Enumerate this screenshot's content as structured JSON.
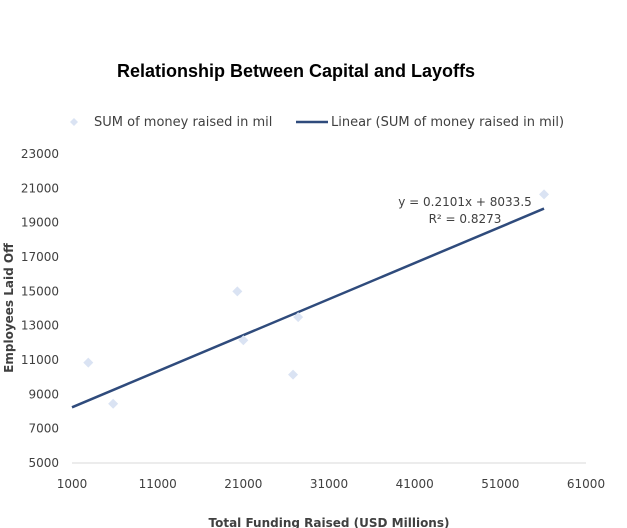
{
  "chart_data": {
    "type": "scatter",
    "title": "Relationship Between Capital and Layoffs",
    "xlabel": "Total Funding Raised (USD Millions)",
    "ylabel": "Employees Laid Off",
    "xlim": [
      1000,
      61000
    ],
    "ylim": [
      5000,
      23000
    ],
    "x_ticks": [
      1000,
      11000,
      21000,
      31000,
      41000,
      51000,
      61000
    ],
    "y_ticks": [
      5000,
      7000,
      9000,
      11000,
      13000,
      15000,
      17000,
      19000,
      21000,
      23000
    ],
    "grid": false,
    "legend_position": "top",
    "series": [
      {
        "name": "SUM of money raised in mil",
        "marker": "diamond",
        "color": "#dae3f3",
        "points": [
          {
            "x": 2900,
            "y": 10850
          },
          {
            "x": 5800,
            "y": 8450
          },
          {
            "x": 20300,
            "y": 15000
          },
          {
            "x": 21000,
            "y": 12150
          },
          {
            "x": 26800,
            "y": 10150
          },
          {
            "x": 27400,
            "y": 13500
          },
          {
            "x": 56100,
            "y": 20650
          }
        ]
      }
    ],
    "trendline": {
      "name": "Linear (SUM of money raised in mil)",
      "type": "linear",
      "slope": 0.2101,
      "intercept": 8033.5,
      "x_range": [
        1000,
        56100
      ],
      "color": "#2f4b7c",
      "equation": "y = 0.2101x + 8033.5",
      "r_squared": "R² = 0.8273"
    }
  }
}
